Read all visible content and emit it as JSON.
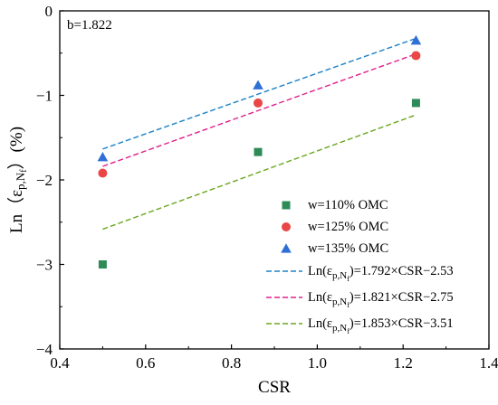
{
  "chart_data": {
    "type": "scatter",
    "xlabel": "CSR",
    "ylabel": "Ln（ε",
    "ylabel_sub": "p,N",
    "ylabel_subsub": "f",
    "ylabel_suffix": "）(%)",
    "xlim": [
      0.4,
      1.4
    ],
    "ylim": [
      -4,
      0
    ],
    "xticks": [
      0.4,
      0.6,
      0.8,
      1.0,
      1.2,
      1.4
    ],
    "xtick_labels": [
      "0.4",
      "0.6",
      "0.8",
      "1.0",
      "1.2",
      "1.4"
    ],
    "yticks": [
      -4,
      -3,
      -2,
      -1,
      0
    ],
    "ytick_labels": [
      "−4",
      "−3",
      "−2",
      "−1",
      "0"
    ],
    "annotation": "b=1.822",
    "legend_position": "bottom-right",
    "series": [
      {
        "name": "w=110% OMC",
        "marker": "square",
        "color": "#2e8b57",
        "x": [
          0.5,
          0.862,
          1.23
        ],
        "y": [
          -3.0,
          -1.67,
          -1.09
        ],
        "fit": {
          "slope": 1.853,
          "intercept": -3.51,
          "x_range": [
            0.5,
            1.23
          ],
          "label_prefix": "Ln(ε",
          "label_sub": "p,N",
          "label_subsub": "f",
          "label_suffix": ")=1.853×CSR−3.51",
          "color": "#6aa61e"
        }
      },
      {
        "name": "w=125% OMC",
        "marker": "circle",
        "color": "#ea4646",
        "x": [
          0.5,
          0.862,
          1.23
        ],
        "y": [
          -1.92,
          -1.09,
          -0.53
        ],
        "fit": {
          "slope": 1.821,
          "intercept": -2.75,
          "x_range": [
            0.5,
            1.23
          ],
          "label_prefix": "Ln(ε",
          "label_sub": "p,N",
          "label_subsub": "f",
          "label_suffix": ")=1.821×CSR−2.75",
          "color": "#e0208a"
        }
      },
      {
        "name": "w=135% OMC",
        "marker": "triangle",
        "color": "#2f6fd6",
        "x": [
          0.5,
          0.862,
          1.23
        ],
        "y": [
          -1.73,
          -0.88,
          -0.35
        ],
        "fit": {
          "slope": 1.792,
          "intercept": -2.53,
          "x_range": [
            0.5,
            1.23
          ],
          "label_prefix": "Ln(ε",
          "label_sub": "p,N",
          "label_subsub": "f",
          "label_suffix": ")=1.792×CSR−2.53",
          "color": "#1f84c8"
        }
      }
    ]
  }
}
